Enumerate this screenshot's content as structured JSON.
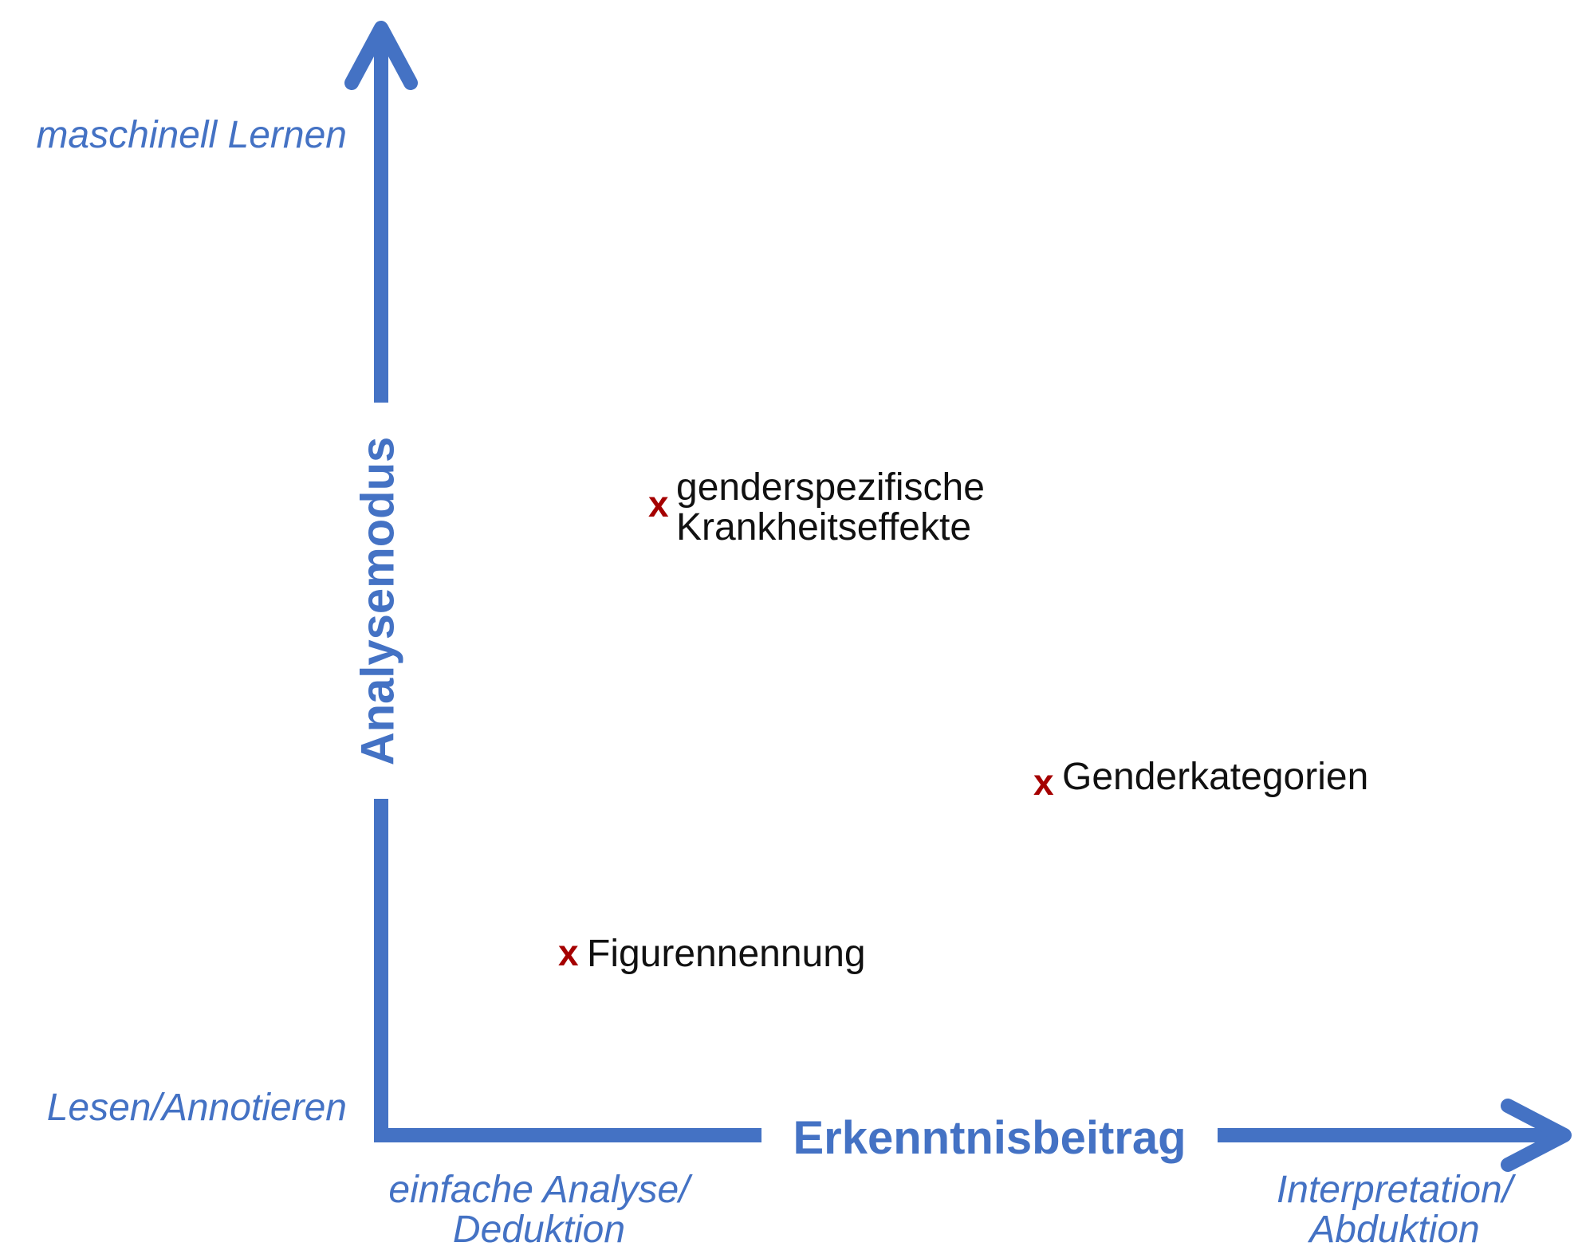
{
  "colors": {
    "axis": "#4472C4",
    "marker": "#A50000",
    "label": "#111111"
  },
  "y_axis": {
    "title": "Analysemodus",
    "top_label": "maschinell Lernen",
    "bottom_label": "Lesen/Annotieren"
  },
  "x_axis": {
    "title": "Erkenntnisbeitrag",
    "left_label_line1": "einfache Analyse/",
    "left_label_line2": "Deduktion",
    "right_label_line1": "Interpretation/",
    "right_label_line2": "Abduktion"
  },
  "items": [
    {
      "marker": "x",
      "line1": "genderspezifische",
      "line2": "Krankheitseffekte"
    },
    {
      "marker": "x",
      "line1": "Genderkategorien"
    },
    {
      "marker": "x",
      "line1": "Figurennennung"
    }
  ]
}
